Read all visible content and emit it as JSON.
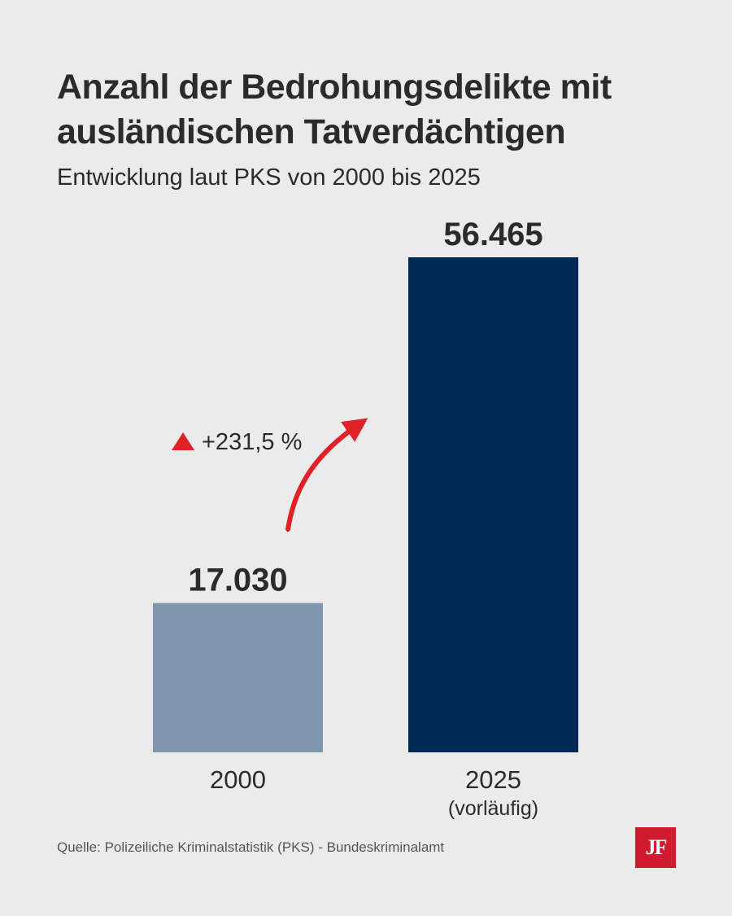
{
  "header": {
    "title_line1": "Anzahl der Bedrohungsdelikte mit",
    "title_line2": "ausländischen Tatverdächtigen",
    "subtitle": "Entwicklung laut PKS von 2000 bis 2025"
  },
  "chart_data": {
    "type": "bar",
    "title": "Anzahl der Bedrohungsdelikte mit ausländischen Tatverdächtigen",
    "subtitle": "Entwicklung laut PKS von 2000 bis 2025",
    "categories": [
      "2000",
      "2025"
    ],
    "category_sublabels": [
      "",
      "(vorläufig)"
    ],
    "values": [
      17030,
      56465
    ],
    "value_labels": [
      "17.030",
      "56.465"
    ],
    "bar_colors": [
      "#8096ae",
      "#002855"
    ],
    "ylim": [
      0,
      56465
    ],
    "grid": false,
    "legend": "none",
    "annotation": {
      "text": "+231,5 %",
      "marker": "red-up-triangle-icon",
      "arrow": "curved-red-arrow-icon",
      "color": "#e02128"
    }
  },
  "footer": {
    "source": "Quelle: Polizeiliche Kriminalstatistik (PKS) - Bundeskriminalamt",
    "logo_text": "JF",
    "logo_color": "#d01a2e"
  }
}
